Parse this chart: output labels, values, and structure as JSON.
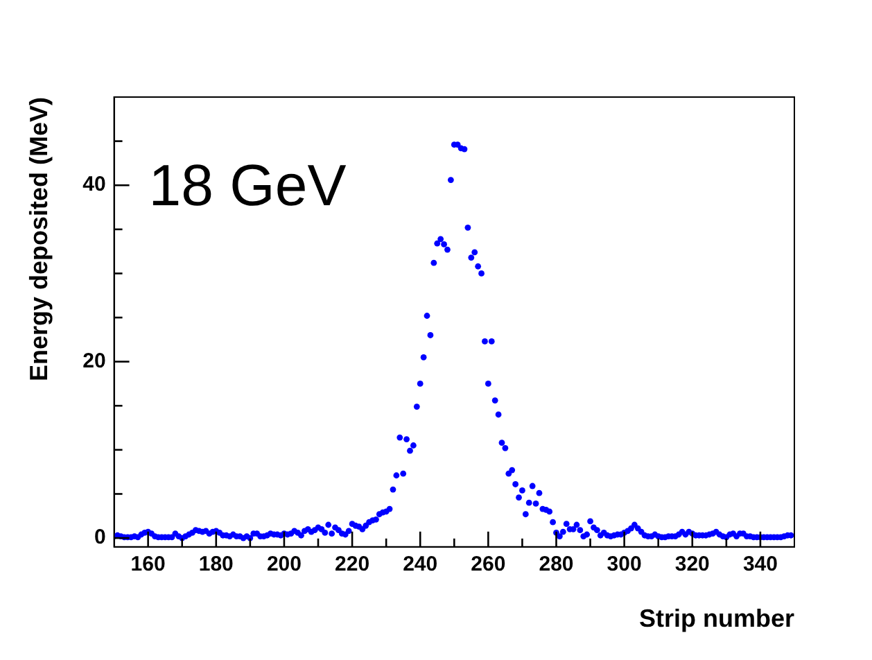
{
  "chart_data": {
    "type": "scatter",
    "xlabel": "Strip number",
    "ylabel": "Energy deposited (MeV)",
    "annotations": [
      "18 GeV"
    ],
    "x": [
      150,
      151,
      152,
      153,
      154,
      155,
      156,
      157,
      158,
      159,
      160,
      161,
      162,
      163,
      164,
      165,
      166,
      167,
      168,
      169,
      170,
      171,
      172,
      173,
      174,
      175,
      176,
      177,
      178,
      179,
      180,
      181,
      182,
      183,
      184,
      185,
      186,
      187,
      188,
      189,
      190,
      191,
      192,
      193,
      194,
      195,
      196,
      197,
      198,
      199,
      200,
      201,
      202,
      203,
      204,
      205,
      206,
      207,
      208,
      209,
      210,
      211,
      212,
      213,
      214,
      215,
      216,
      217,
      218,
      219,
      220,
      221,
      222,
      223,
      224,
      225,
      226,
      227,
      228,
      229,
      230,
      231,
      232,
      233,
      234,
      235,
      236,
      237,
      238,
      239,
      240,
      241,
      242,
      243,
      244,
      245,
      246,
      247,
      248,
      249,
      250,
      251,
      252,
      253,
      254,
      255,
      256,
      257,
      258,
      259,
      260,
      261,
      262,
      263,
      264,
      265,
      266,
      267,
      268,
      269,
      270,
      271,
      272,
      273,
      274,
      275,
      276,
      277,
      278,
      279,
      280,
      281,
      282,
      283,
      284,
      285,
      286,
      287,
      288,
      289,
      290,
      291,
      292,
      293,
      294,
      295,
      296,
      297,
      298,
      299,
      300,
      301,
      302,
      303,
      304,
      305,
      306,
      307,
      308,
      309,
      310,
      311,
      312,
      313,
      314,
      315,
      316,
      317,
      318,
      319,
      320,
      321,
      322,
      323,
      324,
      325,
      326,
      327,
      328,
      329,
      330,
      331,
      332,
      333,
      334,
      335,
      336,
      337,
      338,
      339,
      340,
      341,
      342,
      343,
      344,
      345,
      346,
      347,
      348,
      349
    ],
    "series": [
      {
        "color": "#0000ff",
        "values": [
          0.2,
          0.3,
          0.2,
          0.1,
          0.1,
          0.1,
          0.2,
          0.1,
          0.4,
          0.6,
          0.7,
          0.5,
          0.2,
          0.1,
          0.1,
          0.1,
          0.1,
          0.1,
          0.5,
          0.2,
          0.0,
          0.2,
          0.4,
          0.6,
          0.9,
          0.8,
          0.7,
          0.8,
          0.5,
          0.7,
          0.8,
          0.6,
          0.3,
          0.3,
          0.2,
          0.4,
          0.2,
          0.2,
          0.0,
          0.2,
          0.0,
          0.5,
          0.5,
          0.2,
          0.2,
          0.3,
          0.5,
          0.4,
          0.4,
          0.3,
          0.5,
          0.4,
          0.5,
          0.8,
          0.6,
          0.3,
          0.8,
          1.0,
          0.7,
          0.9,
          1.2,
          1.0,
          0.6,
          1.5,
          0.5,
          1.2,
          0.9,
          0.5,
          0.4,
          0.8,
          1.6,
          1.4,
          1.3,
          1.0,
          1.4,
          1.8,
          2.0,
          2.1,
          2.7,
          2.9,
          3.0,
          3.3,
          5.5,
          7.1,
          11.4,
          7.3,
          11.2,
          9.9,
          10.5,
          14.9,
          17.5,
          20.5,
          25.2,
          23.0,
          31.2,
          33.4,
          33.9,
          33.3,
          32.7,
          40.6,
          44.6,
          44.6,
          44.2,
          44.1,
          35.2,
          31.8,
          32.4,
          30.8,
          30.0,
          22.3,
          17.5,
          22.3,
          15.6,
          14.0,
          10.8,
          10.2,
          7.3,
          7.7,
          6.1,
          4.6,
          5.4,
          2.7,
          4.0,
          5.9,
          3.9,
          5.1,
          3.3,
          3.2,
          3.0,
          1.8,
          0.6,
          0.2,
          0.7,
          1.6,
          1.0,
          1.0,
          1.5,
          0.9,
          0.2,
          0.4,
          1.9,
          1.2,
          0.9,
          0.3,
          0.6,
          0.3,
          0.2,
          0.3,
          0.4,
          0.4,
          0.6,
          0.8,
          1.1,
          1.5,
          1.1,
          0.7,
          0.3,
          0.2,
          0.2,
          0.4,
          0.2,
          0.1,
          0.1,
          0.2,
          0.2,
          0.2,
          0.4,
          0.7,
          0.4,
          0.7,
          0.5,
          0.3,
          0.3,
          0.3,
          0.3,
          0.4,
          0.5,
          0.7,
          0.4,
          0.2,
          0.1,
          0.4,
          0.5,
          0.2,
          0.5,
          0.5,
          0.2,
          0.2,
          0.1,
          0.1,
          0.1,
          0.1,
          0.1,
          0.1,
          0.1,
          0.1,
          0.1,
          0.2,
          0.3,
          0.3
        ]
      }
    ],
    "xlim": [
      150,
      350
    ],
    "ylim": [
      -1,
      50
    ],
    "xticks": [
      160,
      {
        "value": 170,
        "label": null
      },
      180,
      {
        "value": 190,
        "label": null
      },
      200,
      {
        "value": 210,
        "label": null
      },
      220,
      {
        "value": 230,
        "label": null
      },
      240,
      {
        "value": 250,
        "label": null
      },
      260,
      {
        "value": 270,
        "label": null
      },
      280,
      {
        "value": 290,
        "label": null
      },
      300,
      {
        "value": 310,
        "label": null
      },
      320,
      {
        "value": 330,
        "label": null
      },
      340
    ],
    "yticks": [
      0,
      {
        "value": 5,
        "label": null
      },
      {
        "value": 10,
        "label": null
      },
      {
        "value": 15,
        "label": null
      },
      20,
      {
        "value": 25,
        "label": null
      },
      {
        "value": 30,
        "label": null
      },
      {
        "value": 35,
        "label": null
      },
      40,
      {
        "value": 45,
        "label": null
      }
    ],
    "grid": false,
    "legend": false,
    "marker": "circle"
  }
}
